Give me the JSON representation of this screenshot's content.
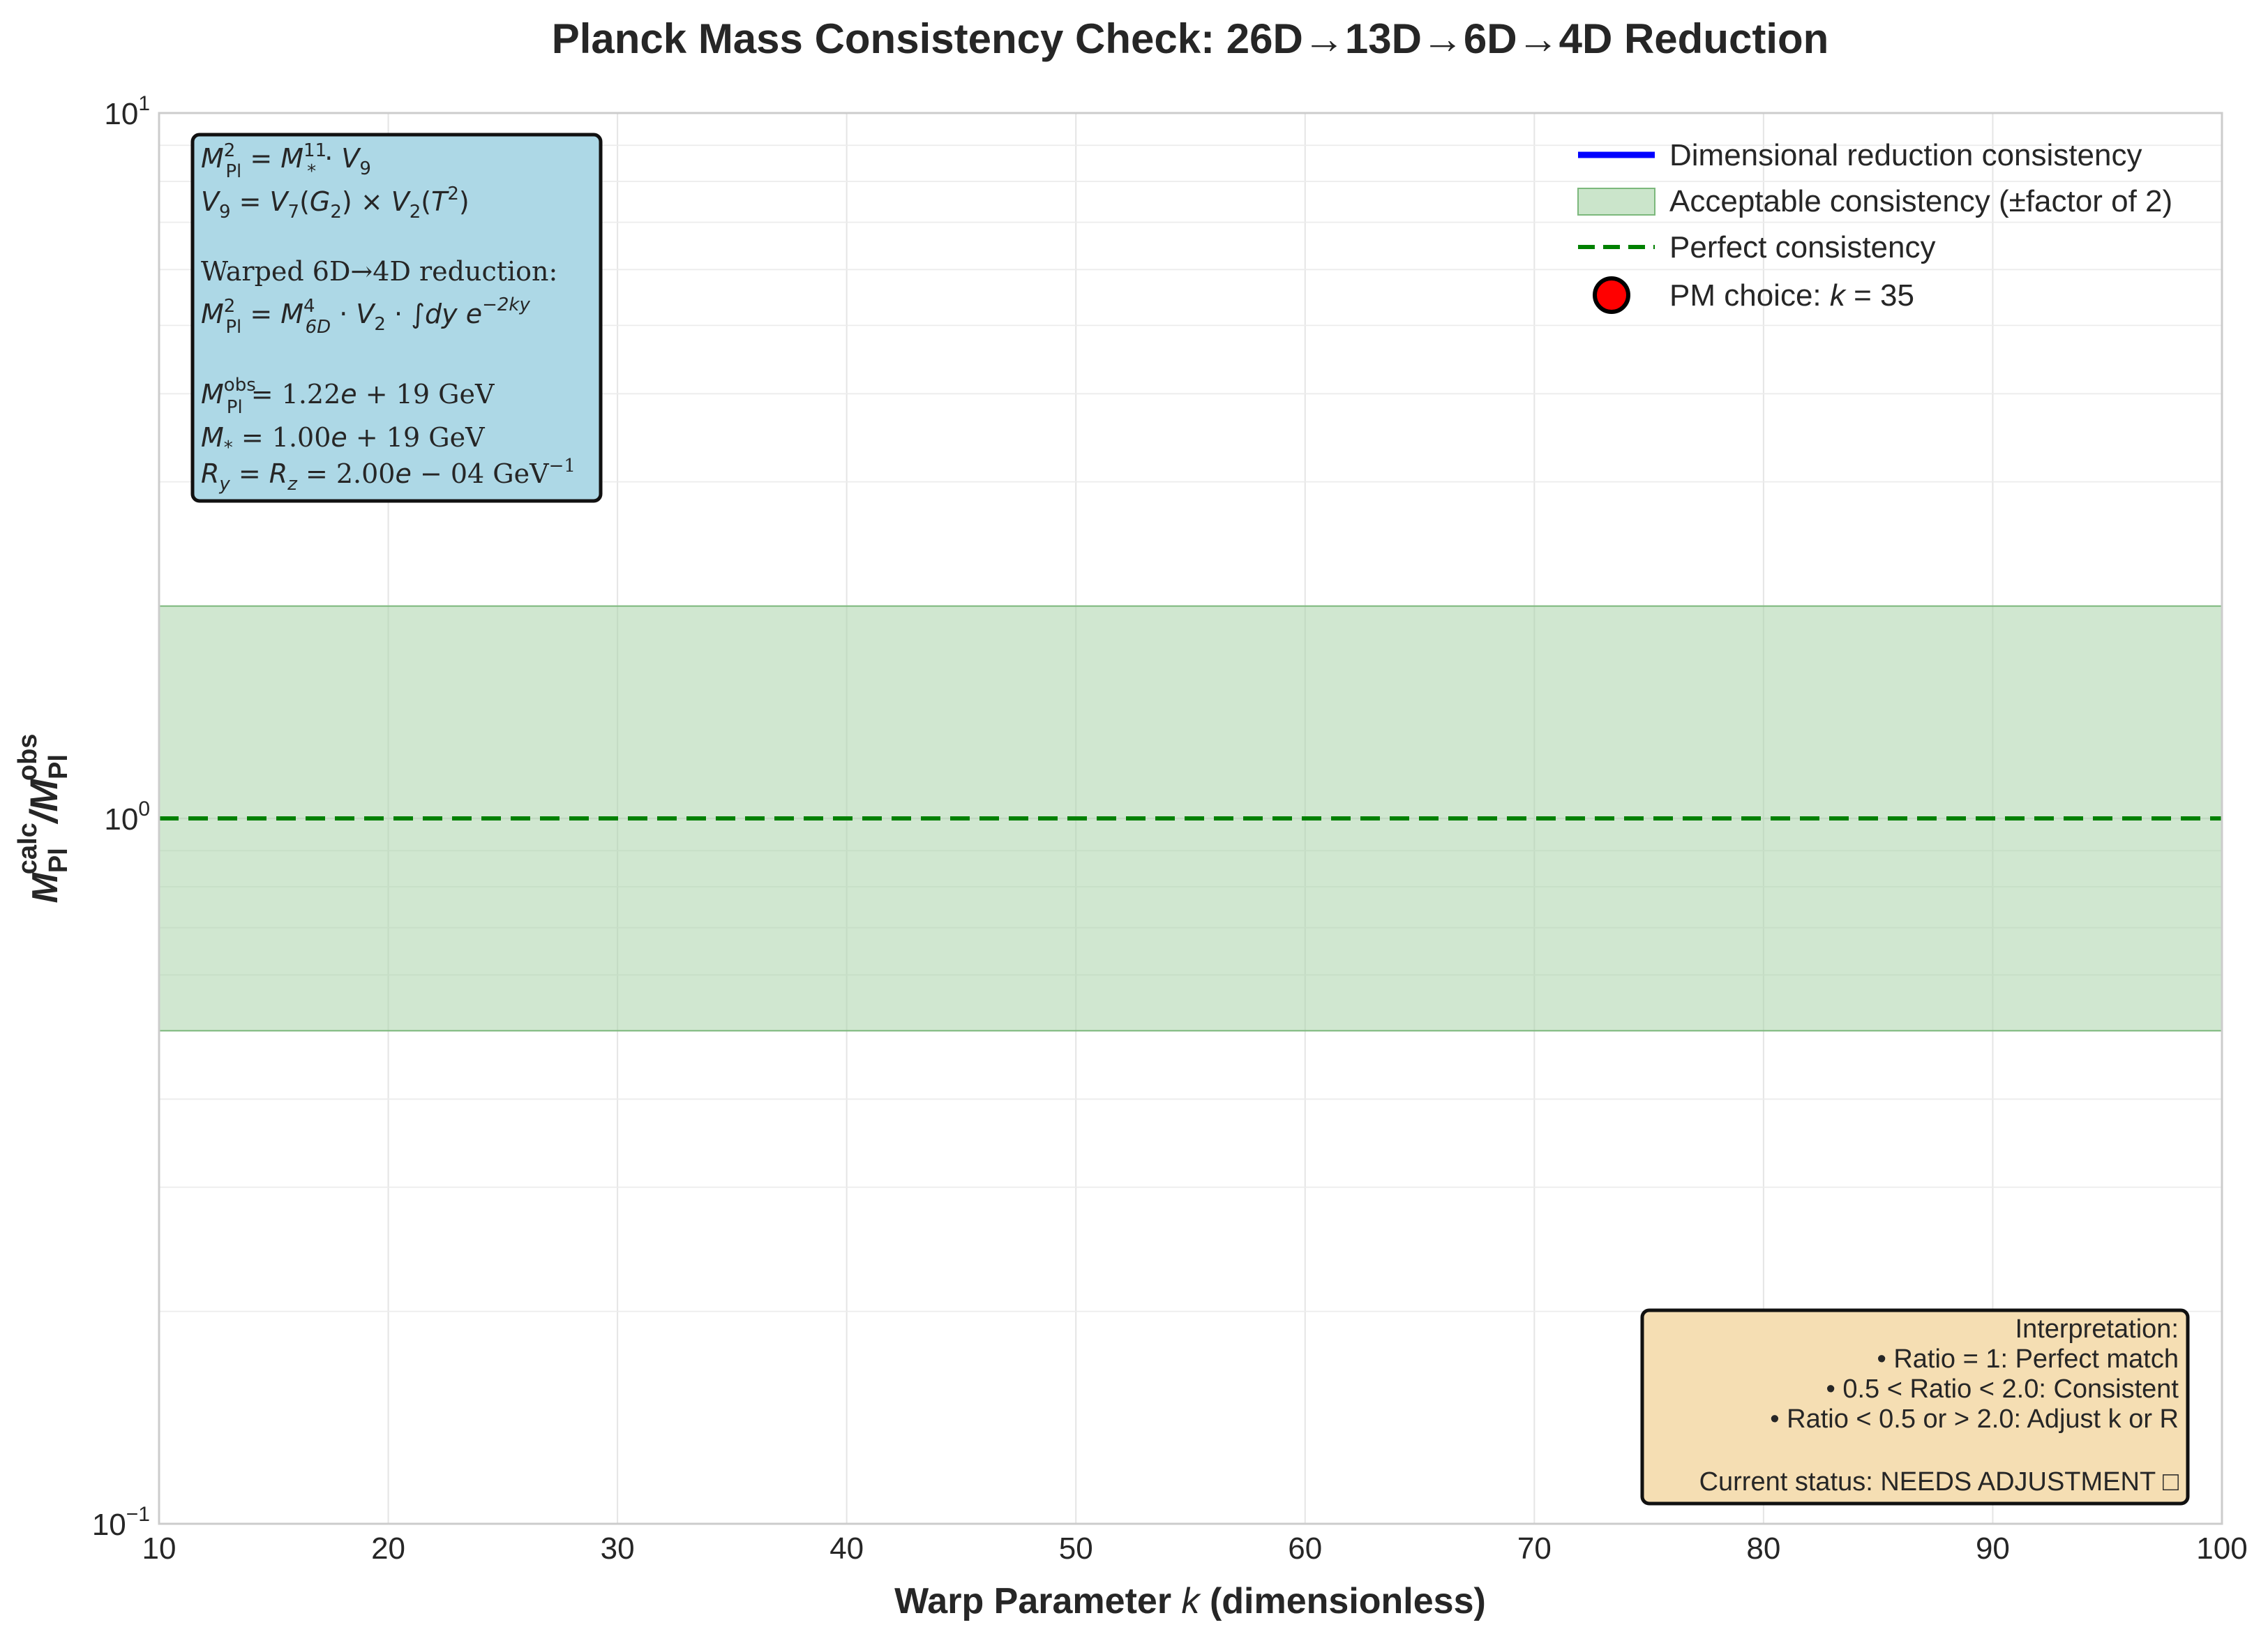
{
  "chart_data": {
    "type": "line",
    "title": "Planck Mass Consistency Check: 26D→13D→6D→4D Reduction",
    "xlabel": "Warp Parameter k (dimensionless)",
    "ylabel": "M_Pl^calc / M_Pl^obs",
    "xlim": [
      10,
      100
    ],
    "ylim": [
      0.1,
      10
    ],
    "yscale": "log",
    "grid": true,
    "x_ticks": [
      "10",
      "20",
      "30",
      "40",
      "50",
      "60",
      "70",
      "80",
      "90",
      "100"
    ],
    "y_ticks": [
      {
        "base": "10",
        "exp": "−1",
        "value": 0.1
      },
      {
        "base": "10",
        "exp": "0",
        "value": 1
      },
      {
        "base": "10",
        "exp": "1",
        "value": 10
      }
    ],
    "band": {
      "name": "Acceptable consistency (±factor of 2)",
      "ymin": 0.5,
      "ymax": 2.0,
      "color": "#a9d4a9"
    },
    "reference_line": {
      "name": "Perfect consistency",
      "y": 1.0,
      "color": "#008000",
      "style": "dashed"
    },
    "series": [
      {
        "name": "Dimensional reduction consistency",
        "color": "#0000ff",
        "x": [],
        "y": []
      }
    ],
    "marker": {
      "name": "PM choice: k = 35",
      "x": 35,
      "y": null,
      "color": "#ff0000"
    },
    "legend_position": "top-right"
  },
  "legend": {
    "items": [
      {
        "label": "Dimensional reduction consistency",
        "kind": "line",
        "color": "#0000ff"
      },
      {
        "label": "Acceptable consistency (±factor of 2)",
        "kind": "patch",
        "color": "#a9d4a9"
      },
      {
        "label": "Perfect consistency",
        "kind": "dash",
        "color": "#008000"
      },
      {
        "label": "PM choice: k = 35",
        "kind": "marker",
        "color": "#ff0000"
      }
    ]
  },
  "info_box": {
    "bg": "#add8e6",
    "eq1": "M_Pl² = M_*¹¹ · V₉",
    "eq2": "V₉ = V₇(G₂) × V₂(T²)",
    "heading": "Warped 6D→4D reduction:",
    "eq3": "M_Pl² = M_6D⁴ · V₂ · ∫dy e^(−2ky)",
    "p1": "M_Pl^obs = 1.22e + 19 GeV",
    "p2": "M_* = 1.00e + 19 GeV",
    "p3": "R_y = R_z = 2.00e − 04 GeV⁻¹"
  },
  "interpretation_box": {
    "bg": "#f5deb3",
    "lines": [
      "Interpretation:",
      "• Ratio = 1: Perfect match",
      "• 0.5 < Ratio < 2.0: Consistent",
      "• Ratio < 0.5 or > 2.0: Adjust k or R",
      "",
      "Current status: NEEDS ADJUSTMENT □"
    ]
  }
}
